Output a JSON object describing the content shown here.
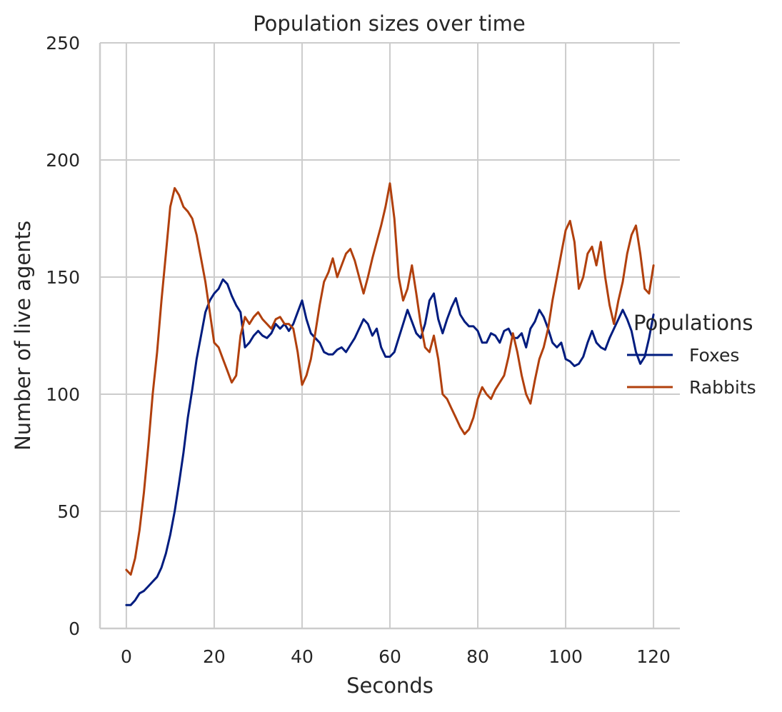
{
  "chart_data": {
    "type": "line",
    "title": "Population sizes over time",
    "xlabel": "Seconds",
    "ylabel": "Number of live agents",
    "xlim": [
      -6,
      126
    ],
    "ylim": [
      0,
      250
    ],
    "xticks": [
      0,
      20,
      40,
      60,
      80,
      100,
      120
    ],
    "yticks": [
      0,
      50,
      100,
      150,
      200,
      250
    ],
    "grid": true,
    "legend": {
      "title": "Populations",
      "placement": "right"
    },
    "x": [
      0,
      1,
      2,
      3,
      4,
      5,
      6,
      7,
      8,
      9,
      10,
      11,
      12,
      13,
      14,
      15,
      16,
      17,
      18,
      19,
      20,
      21,
      22,
      23,
      24,
      25,
      26,
      27,
      28,
      29,
      30,
      31,
      32,
      33,
      34,
      35,
      36,
      37,
      38,
      39,
      40,
      41,
      42,
      43,
      44,
      45,
      46,
      47,
      48,
      49,
      50,
      51,
      52,
      53,
      54,
      55,
      56,
      57,
      58,
      59,
      60,
      61,
      62,
      63,
      64,
      65,
      66,
      67,
      68,
      69,
      70,
      71,
      72,
      73,
      74,
      75,
      76,
      77,
      78,
      79,
      80,
      81,
      82,
      83,
      84,
      85,
      86,
      87,
      88,
      89,
      90,
      91,
      92,
      93,
      94,
      95,
      96,
      97,
      98,
      99,
      100,
      101,
      102,
      103,
      104,
      105,
      106,
      107,
      108,
      109,
      110,
      111,
      112,
      113,
      114,
      115,
      116,
      117,
      118,
      119,
      120
    ],
    "series": [
      {
        "name": "Foxes",
        "color": "#001c7f",
        "values": [
          10,
          10,
          12,
          15,
          16,
          18,
          20,
          22,
          26,
          32,
          40,
          50,
          62,
          75,
          90,
          102,
          115,
          125,
          135,
          140,
          143,
          145,
          149,
          147,
          142,
          138,
          135,
          120,
          122,
          125,
          127,
          125,
          124,
          126,
          130,
          128,
          130,
          127,
          130,
          135,
          140,
          132,
          126,
          124,
          122,
          118,
          117,
          117,
          119,
          120,
          118,
          121,
          124,
          128,
          132,
          130,
          125,
          128,
          120,
          116,
          116,
          118,
          124,
          130,
          136,
          131,
          126,
          124,
          130,
          140,
          143,
          132,
          126,
          132,
          137,
          141,
          134,
          131,
          129,
          129,
          127,
          122,
          122,
          126,
          125,
          122,
          127,
          128,
          124,
          124,
          126,
          120,
          128,
          131,
          136,
          133,
          128,
          122,
          120,
          122,
          115,
          114,
          112,
          113,
          116,
          122,
          127,
          122,
          120,
          119,
          124,
          128,
          132,
          136,
          132,
          127,
          118,
          113,
          116,
          124,
          134
        ]
      },
      {
        "name": "Rabbits",
        "color": "#b1400d",
        "values": [
          25,
          23,
          30,
          42,
          58,
          78,
          100,
          118,
          140,
          160,
          180,
          188,
          185,
          180,
          178,
          175,
          168,
          158,
          148,
          135,
          122,
          120,
          115,
          110,
          105,
          108,
          125,
          133,
          130,
          133,
          135,
          132,
          130,
          128,
          132,
          133,
          130,
          130,
          128,
          118,
          104,
          108,
          115,
          126,
          138,
          148,
          152,
          158,
          150,
          155,
          160,
          162,
          157,
          150,
          143,
          150,
          158,
          165,
          172,
          180,
          190,
          175,
          150,
          140,
          145,
          155,
          143,
          130,
          120,
          118,
          125,
          115,
          100,
          98,
          94,
          90,
          86,
          83,
          85,
          90,
          98,
          103,
          100,
          98,
          102,
          105,
          108,
          116,
          126,
          118,
          108,
          100,
          96,
          106,
          115,
          120,
          128,
          140,
          150,
          160,
          170,
          174,
          165,
          145,
          150,
          160,
          163,
          155,
          165,
          150,
          138,
          130,
          140,
          148,
          160,
          168,
          172,
          160,
          145,
          143,
          155
        ]
      }
    ]
  }
}
